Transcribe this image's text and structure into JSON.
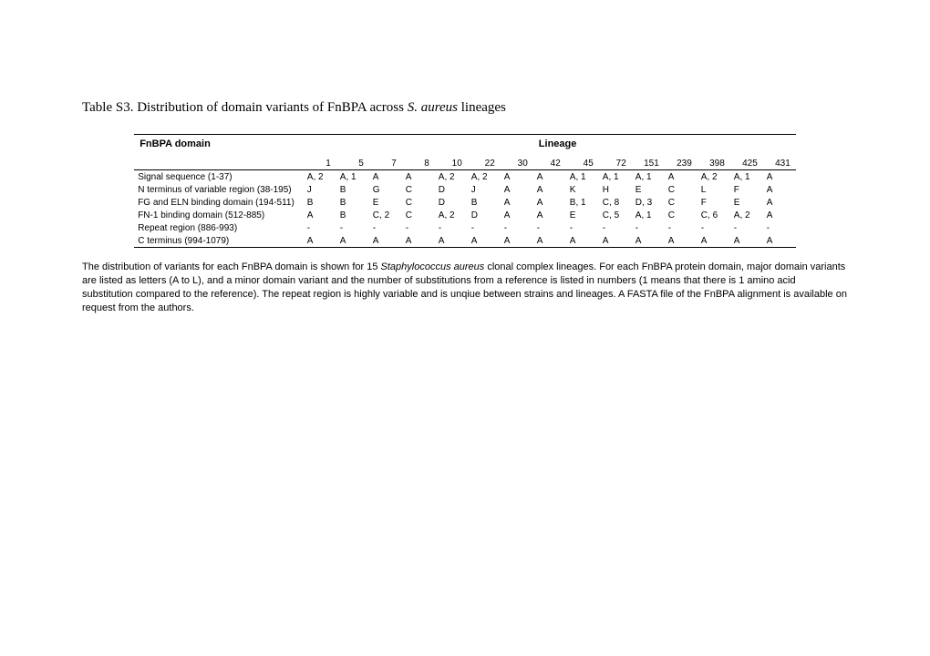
{
  "title_prefix": "Table S3. Distribution of domain variants of FnBPA across ",
  "title_italic": "S. aureus",
  "title_suffix": " lineages",
  "header_domain": "FnBPA domain",
  "header_lineage": "Lineage",
  "lineages": [
    "1",
    "5",
    "7",
    "8",
    "10",
    "22",
    "30",
    "42",
    "45",
    "72",
    "151",
    "239",
    "398",
    "425",
    "431"
  ],
  "rows": [
    {
      "label": "Signal sequence (1-37)",
      "cells": [
        "A, 2",
        "A, 1",
        "A",
        "A",
        "A, 2",
        "A, 2",
        "A",
        "A",
        "A, 1",
        "A, 1",
        "A, 1",
        "A",
        "A, 2",
        "A, 1",
        "A"
      ]
    },
    {
      "label": "N terminus of variable region (38-195)",
      "cells": [
        "J",
        "B",
        "G",
        "C",
        "D",
        "J",
        "A",
        "A",
        "K",
        "H",
        "E",
        "C",
        "L",
        "F",
        "A"
      ]
    },
    {
      "label": "FG and ELN binding domain (194-511)",
      "cells": [
        "B",
        "B",
        "E",
        "C",
        "D",
        "B",
        "A",
        "A",
        "B, 1",
        "C, 8",
        "D, 3",
        "C",
        "F",
        "E",
        "A"
      ]
    },
    {
      "label": "FN-1 binding domain (512-885)",
      "cells": [
        "A",
        "B",
        "C, 2",
        "C",
        "A, 2",
        "D",
        "A",
        "A",
        "E",
        "C, 5",
        "A, 1",
        "C",
        "C, 6",
        "A, 2",
        "A"
      ]
    },
    {
      "label": "Repeat region (886-993)",
      "cells": [
        "-",
        "-",
        "-",
        "-",
        "-",
        "-",
        "-",
        "-",
        "-",
        "-",
        "-",
        "-",
        "-",
        "-",
        "-"
      ]
    },
    {
      "label": "C terminus (994-1079)",
      "cells": [
        "A",
        "A",
        "A",
        "A",
        "A",
        "A",
        "A",
        "A",
        "A",
        "A",
        "A",
        "A",
        "A",
        "A",
        "A"
      ]
    }
  ],
  "caption_part1": "The distribution of variants for each FnBPA domain is shown for 15 ",
  "caption_italic": "Staphylococcus aureus",
  "caption_part2": " clonal complex lineages. For each FnBPA protein domain, major domain variants are listed as letters (A to L), and a minor domain variant and the number of substitutions from a reference is listed in numbers (1 means that there is 1 amino acid substitution compared to the reference). The repeat region is highly variable and is unqiue between strains and lineages. A FASTA file of the FnBPA alignment is available on request from the authors."
}
